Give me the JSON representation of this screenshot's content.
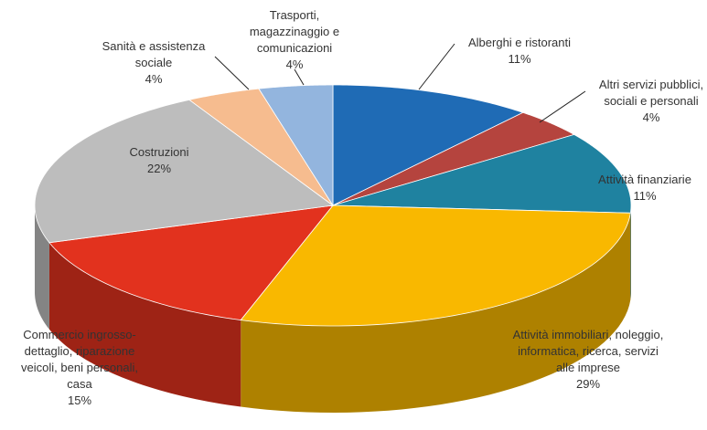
{
  "chart_data": {
    "type": "pie",
    "categories": [
      "Alberghi e ristoranti",
      "Altri servizi pubblici, sociali e personali",
      "Attività finanziarie",
      "Attività immobiliari, noleggio, informatica, ricerca, servizi alle imprese",
      "Commercio ingrosso-dettaglio, riparazione veicoli, beni personali, casa",
      "Costruzioni",
      "Sanità e assistenza sociale",
      "Trasporti, magazzinaggio e comunicazioni"
    ],
    "values": [
      11,
      4,
      11,
      29,
      15,
      22,
      4,
      4
    ],
    "value_labels": [
      "11%",
      "4%",
      "11%",
      "29%",
      "15%",
      "22%",
      "4%",
      "4%"
    ],
    "colors": [
      "#1f6bb5",
      "#b5443e",
      "#1f82a0",
      "#f9b800",
      "#e2321e",
      "#bdbdbd",
      "#f6bc8f",
      "#93b5de"
    ]
  }
}
